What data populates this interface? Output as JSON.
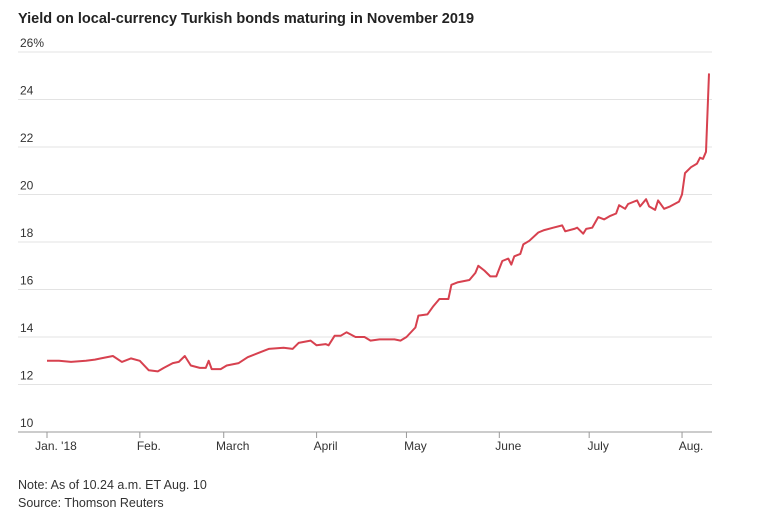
{
  "chart_data": {
    "type": "line",
    "title": "Yield on local-currency Turkish bonds maturing in November 2019",
    "note": "Note: As of 10.24 a.m. ET Aug. 10",
    "source": "Source: Thomson Reuters",
    "xlim": [
      -3,
      222
    ],
    "xticks": [
      {
        "value": 0,
        "label": "Jan. '18"
      },
      {
        "value": 31,
        "label": "Feb."
      },
      {
        "value": 59,
        "label": "March"
      },
      {
        "value": 90,
        "label": "April"
      },
      {
        "value": 120,
        "label": "May"
      },
      {
        "value": 151,
        "label": "June"
      },
      {
        "value": 181,
        "label": "July"
      },
      {
        "value": 212,
        "label": "Aug."
      }
    ],
    "ylim": [
      10,
      26
    ],
    "yticks": [
      10,
      12,
      14,
      16,
      18,
      20,
      22,
      24,
      {
        "value": 26,
        "label": "26%"
      }
    ],
    "grid": true,
    "series": [
      {
        "color": "#d7414f",
        "x": [
          0,
          4,
          8,
          13,
          16,
          18,
          22,
          25,
          28,
          31,
          34,
          37,
          39,
          42,
          44,
          46,
          48,
          51,
          53,
          54,
          55,
          58,
          60,
          64,
          67,
          71,
          74,
          79,
          82,
          84,
          88,
          90,
          93,
          94,
          96,
          98,
          100,
          103,
          106,
          108,
          111,
          116,
          118,
          120,
          123,
          124,
          127,
          129,
          131,
          134,
          135,
          137,
          141,
          143,
          144,
          146,
          148,
          150,
          152,
          154,
          155,
          156,
          158,
          159,
          161,
          164,
          166,
          169,
          172,
          173,
          176,
          177,
          179,
          180,
          182,
          184,
          186,
          188,
          190,
          191,
          193,
          194,
          197,
          198,
          200,
          201,
          203,
          204,
          206,
          208,
          211,
          212,
          213,
          215,
          217,
          218,
          219,
          220,
          221
        ],
        "values": [
          13.0,
          13.0,
          12.95,
          13.0,
          13.05,
          13.1,
          13.2,
          12.95,
          13.1,
          13.0,
          12.6,
          12.55,
          12.7,
          12.9,
          12.95,
          13.2,
          12.8,
          12.7,
          12.7,
          13.0,
          12.65,
          12.65,
          12.8,
          12.9,
          13.15,
          13.35,
          13.5,
          13.55,
          13.5,
          13.75,
          13.85,
          13.65,
          13.7,
          13.65,
          14.05,
          14.05,
          14.2,
          14.0,
          14.0,
          13.85,
          13.9,
          13.9,
          13.85,
          14.0,
          14.4,
          14.9,
          14.95,
          15.3,
          15.6,
          15.6,
          16.2,
          16.3,
          16.4,
          16.7,
          17.0,
          16.8,
          16.55,
          16.55,
          17.2,
          17.3,
          17.05,
          17.4,
          17.5,
          17.9,
          18.05,
          18.4,
          18.5,
          18.6,
          18.7,
          18.45,
          18.55,
          18.6,
          18.35,
          18.55,
          18.6,
          19.05,
          18.95,
          19.1,
          19.2,
          19.55,
          19.4,
          19.6,
          19.75,
          19.5,
          19.8,
          19.5,
          19.35,
          19.75,
          19.4,
          19.5,
          19.7,
          20.0,
          20.9,
          21.15,
          21.3,
          21.55,
          21.5,
          21.8,
          25.1
        ]
      }
    ]
  }
}
